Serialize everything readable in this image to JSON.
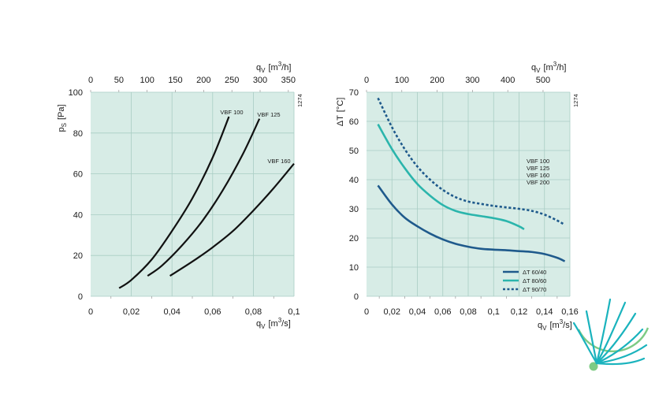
{
  "chart_data": [
    {
      "type": "line",
      "left_axis": {
        "symbol": "p",
        "subscript": "S",
        "unit": "[Pa]",
        "range": [
          0,
          100
        ],
        "ticks": [
          "0",
          "20",
          "40",
          "60",
          "80",
          "100"
        ]
      },
      "bottom_axis": {
        "symbol": "q",
        "subscript": "V",
        "unit_pre": "[m",
        "unit_sup": "3",
        "unit_post": "/s]",
        "range": [
          0,
          0.1
        ],
        "ticks": [
          "0",
          "0,02",
          "0,04",
          "0,06",
          "0,08",
          "0,1"
        ]
      },
      "top_axis": {
        "symbol": "q",
        "subscript": "V",
        "unit_pre": "[m",
        "unit_sup": "3",
        "unit_post": "/h]",
        "range": [
          0,
          360
        ],
        "ticks": [
          "0",
          "50",
          "100",
          "150",
          "200",
          "250",
          "300",
          "350"
        ]
      },
      "code": "1274",
      "series": [
        {
          "name": "VBF 100",
          "style": "solid",
          "color": "#111111",
          "x": [
            0.014,
            0.02,
            0.03,
            0.04,
            0.05,
            0.06,
            0.068
          ],
          "y": [
            4,
            8,
            18,
            32,
            48,
            68,
            88
          ]
        },
        {
          "name": "VBF 125",
          "style": "solid",
          "color": "#111111",
          "x": [
            0.028,
            0.035,
            0.045,
            0.055,
            0.065,
            0.075,
            0.083
          ],
          "y": [
            10,
            15,
            25,
            37,
            52,
            70,
            87
          ]
        },
        {
          "name": "VBF 160",
          "style": "solid",
          "color": "#111111",
          "x": [
            0.039,
            0.05,
            0.06,
            0.07,
            0.08,
            0.09,
            0.1
          ],
          "y": [
            10,
            17,
            24,
            32,
            42,
            53,
            65
          ]
        }
      ]
    },
    {
      "type": "line",
      "left_axis": {
        "symbol": "ΔT",
        "subscript": "",
        "unit": "[°C]",
        "range": [
          0,
          70
        ],
        "ticks": [
          "0",
          "10",
          "20",
          "30",
          "40",
          "50",
          "60",
          "70"
        ]
      },
      "bottom_axis": {
        "symbol": "q",
        "subscript": "V",
        "unit_pre": "[m",
        "unit_sup": "3",
        "unit_post": "/s]",
        "range": [
          0,
          0.16
        ],
        "ticks": [
          "0",
          "0,02",
          "0,04",
          "0,06",
          "0,08",
          "0,1",
          "0,12",
          "0,14",
          "0,16"
        ]
      },
      "top_axis": {
        "symbol": "q",
        "subscript": "V",
        "unit_pre": "[m",
        "unit_sup": "3",
        "unit_post": "/h]",
        "range": [
          0,
          576
        ],
        "ticks": [
          "0",
          "100",
          "200",
          "300",
          "400",
          "500"
        ]
      },
      "code": "1274",
      "models_label": [
        "VBF 100",
        "VBF 125",
        "VBF 160",
        "VBF 200"
      ],
      "series": [
        {
          "name": "ΔT 60/40",
          "style": "solid",
          "color": "#1f5a8c",
          "x": [
            0.009,
            0.02,
            0.03,
            0.04,
            0.05,
            0.06,
            0.07,
            0.08,
            0.09,
            0.1,
            0.11,
            0.12,
            0.13,
            0.14,
            0.15,
            0.156
          ],
          "y": [
            38,
            31.5,
            27,
            24,
            21.5,
            19.5,
            18,
            17,
            16.3,
            16,
            15.8,
            15.5,
            15.2,
            14.5,
            13.2,
            12
          ]
        },
        {
          "name": "ΔT 80/60",
          "style": "solid",
          "color": "#2bb5ac",
          "x": [
            0.009,
            0.02,
            0.03,
            0.04,
            0.05,
            0.06,
            0.07,
            0.08,
            0.09,
            0.1,
            0.11,
            0.12,
            0.124
          ],
          "y": [
            59,
            50.5,
            44,
            38.5,
            34.5,
            31.3,
            29.3,
            28.2,
            27.5,
            26.8,
            25.8,
            24,
            23
          ]
        },
        {
          "name": "ΔT 90/70",
          "style": "dotted",
          "color": "#1f5a8c",
          "x": [
            0.009,
            0.02,
            0.03,
            0.04,
            0.05,
            0.06,
            0.07,
            0.08,
            0.09,
            0.1,
            0.11,
            0.12,
            0.13,
            0.14,
            0.15,
            0.156
          ],
          "y": [
            68,
            58,
            50.5,
            44.5,
            40,
            36.5,
            34,
            32.5,
            31.7,
            31,
            30.5,
            30,
            29.3,
            28,
            26,
            24.5
          ]
        }
      ]
    }
  ]
}
